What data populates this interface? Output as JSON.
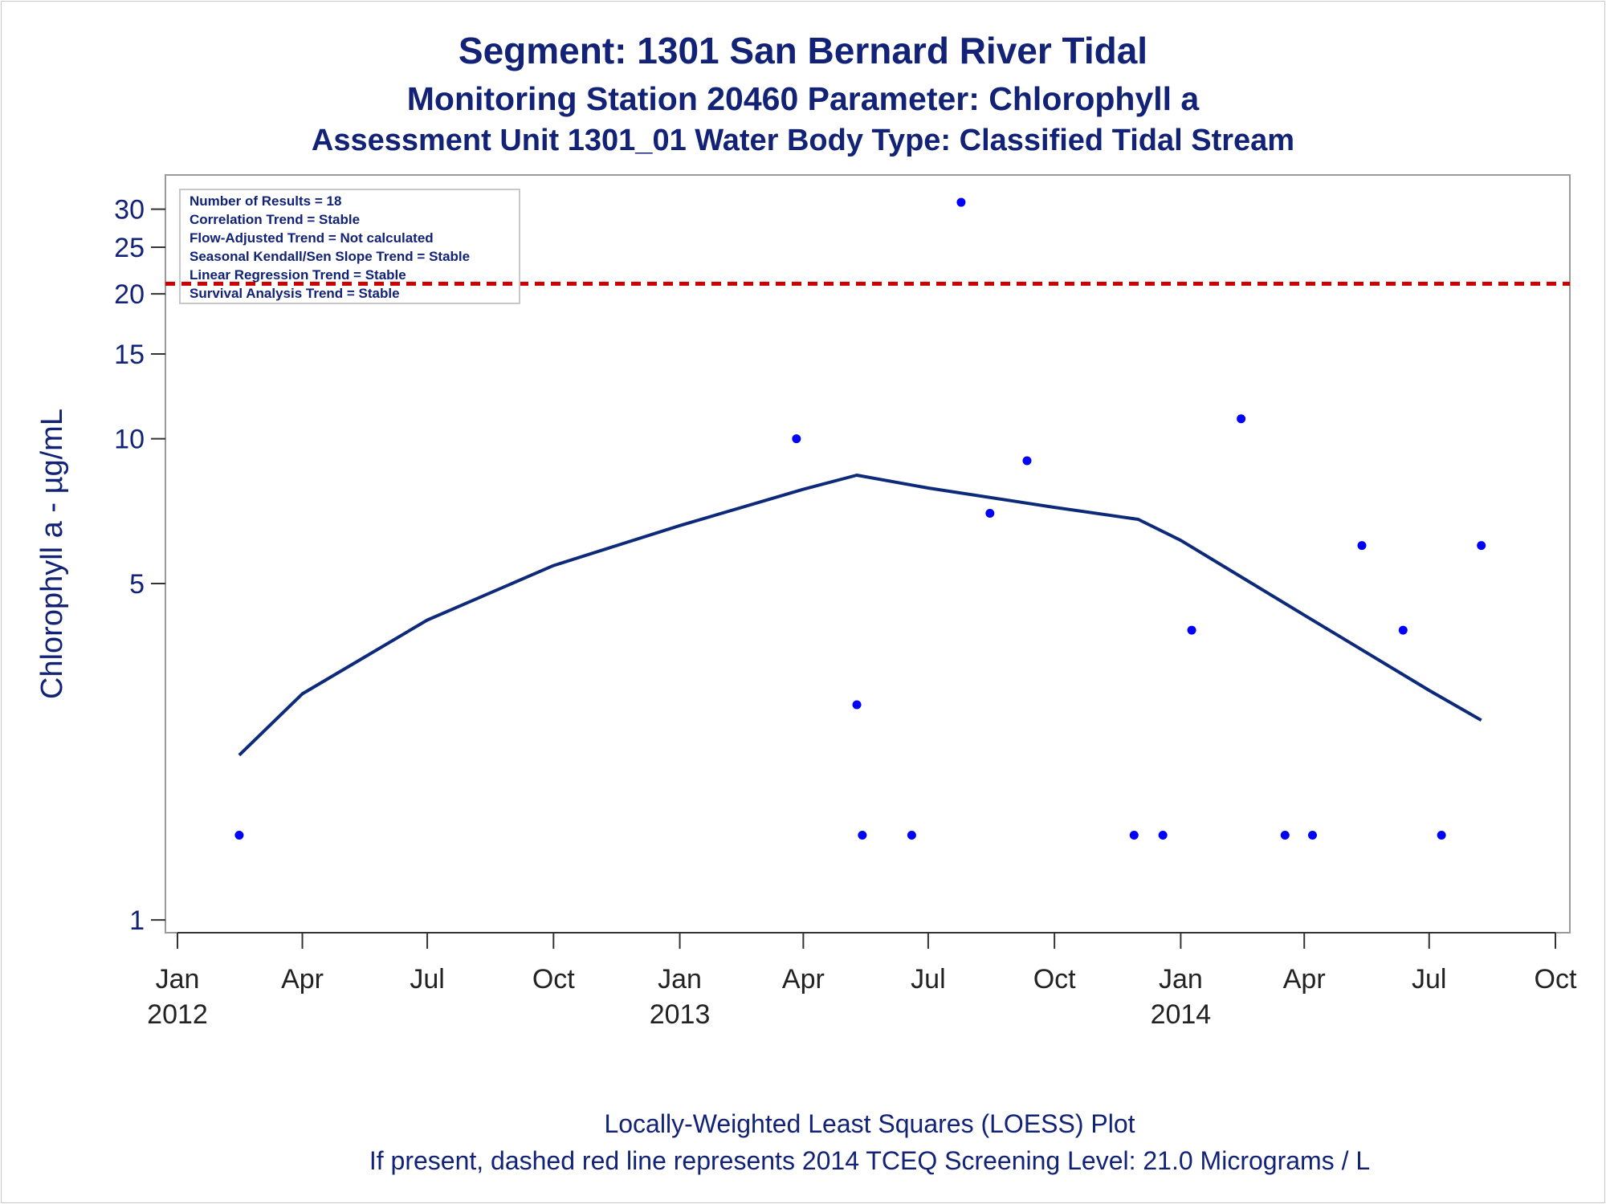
{
  "titles": {
    "line1": "Segment: 1301  San Bernard River Tidal",
    "line2": "Monitoring Station 20460 Parameter: Chlorophyll a",
    "line3": "Assessment Unit 1301_01   Water Body Type: Classified Tidal Stream"
  },
  "footer": {
    "line1": "Locally-Weighted Least Squares (LOESS) Plot",
    "line2": "If present, dashed red line represents 2014 TCEQ Screening Level: 21.0 Micrograms / L"
  },
  "info_box": [
    "Number of Results = 18",
    "Correlation Trend = Stable",
    "Flow-Adjusted Trend = Not calculated",
    "Seasonal Kendall/Sen Slope Trend = Stable",
    "Linear Regression Trend = Stable",
    "Survival Analysis Trend = Stable"
  ],
  "colors": {
    "text": "#112277",
    "points": "#0000ff",
    "loess": "#0d2a7a",
    "screening_line": "#cc0000",
    "frame": "#9a9a9a"
  },
  "chart_data": {
    "type": "scatter",
    "ylabel": "Chlorophyll a -  µg/mL",
    "xlabel": "",
    "y_scale": "log",
    "ylim": [
      0.97,
      34
    ],
    "xlim": [
      "2012-01-01",
      "2014-10-01"
    ],
    "y_ticks": [
      1,
      5,
      10,
      15,
      20,
      25,
      30
    ],
    "x_ticks": [
      {
        "date": "2012-01-01",
        "label": "Jan",
        "year": "2012"
      },
      {
        "date": "2012-04-01",
        "label": "Apr",
        "year": ""
      },
      {
        "date": "2012-07-01",
        "label": "Jul",
        "year": ""
      },
      {
        "date": "2012-10-01",
        "label": "Oct",
        "year": ""
      },
      {
        "date": "2013-01-01",
        "label": "Jan",
        "year": "2013"
      },
      {
        "date": "2013-04-01",
        "label": "Apr",
        "year": ""
      },
      {
        "date": "2013-07-01",
        "label": "Jul",
        "year": ""
      },
      {
        "date": "2013-10-01",
        "label": "Oct",
        "year": ""
      },
      {
        "date": "2014-01-01",
        "label": "Jan",
        "year": "2014"
      },
      {
        "date": "2014-04-01",
        "label": "Apr",
        "year": ""
      },
      {
        "date": "2014-07-01",
        "label": "Jul",
        "year": ""
      },
      {
        "date": "2014-10-01",
        "label": "Oct",
        "year": ""
      }
    ],
    "points": [
      {
        "date": "2012-02-15",
        "value": 1.5
      },
      {
        "date": "2013-03-27",
        "value": 10.0
      },
      {
        "date": "2013-05-10",
        "value": 2.8
      },
      {
        "date": "2013-05-14",
        "value": 1.5
      },
      {
        "date": "2013-06-19",
        "value": 1.5
      },
      {
        "date": "2013-07-25",
        "value": 31.0
      },
      {
        "date": "2013-08-15",
        "value": 7.0
      },
      {
        "date": "2013-09-11",
        "value": 9.0
      },
      {
        "date": "2013-11-28",
        "value": 1.5
      },
      {
        "date": "2013-12-19",
        "value": 1.5
      },
      {
        "date": "2014-01-09",
        "value": 4.0
      },
      {
        "date": "2014-02-14",
        "value": 11.0
      },
      {
        "date": "2014-03-18",
        "value": 1.5
      },
      {
        "date": "2014-04-07",
        "value": 1.5
      },
      {
        "date": "2014-05-13",
        "value": 6.0
      },
      {
        "date": "2014-06-12",
        "value": 4.0
      },
      {
        "date": "2014-07-10",
        "value": 1.5
      },
      {
        "date": "2014-08-08",
        "value": 6.0
      }
    ],
    "loess": [
      {
        "date": "2012-02-15",
        "value": 2.2
      },
      {
        "date": "2012-04-01",
        "value": 2.95
      },
      {
        "date": "2012-07-01",
        "value": 4.2
      },
      {
        "date": "2012-10-01",
        "value": 5.45
      },
      {
        "date": "2013-01-01",
        "value": 6.6
      },
      {
        "date": "2013-04-01",
        "value": 7.85
      },
      {
        "date": "2013-05-10",
        "value": 8.4
      },
      {
        "date": "2013-07-01",
        "value": 7.9
      },
      {
        "date": "2013-10-01",
        "value": 7.2
      },
      {
        "date": "2013-12-01",
        "value": 6.8
      },
      {
        "date": "2014-01-01",
        "value": 6.15
      },
      {
        "date": "2014-04-01",
        "value": 4.3
      },
      {
        "date": "2014-07-01",
        "value": 3.0
      },
      {
        "date": "2014-08-08",
        "value": 2.6
      }
    ],
    "reference_line": {
      "value": 21.0,
      "style": "dashed"
    }
  }
}
